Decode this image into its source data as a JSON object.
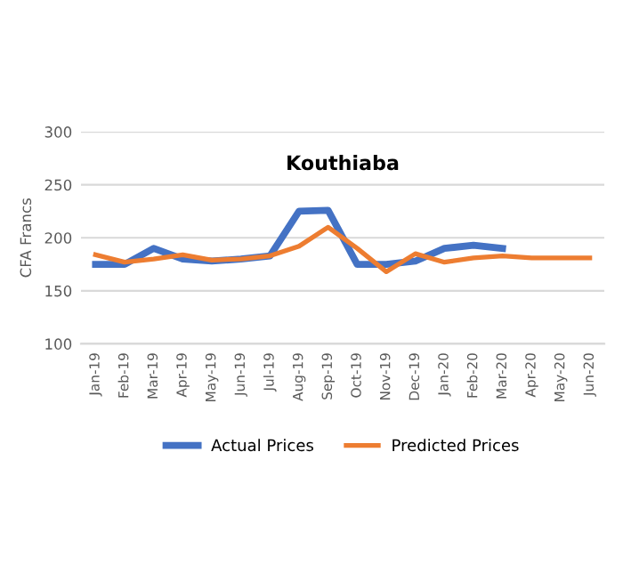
{
  "chart_data": {
    "type": "line",
    "title": "Kouthiaba",
    "ylabel": "CFA Francs",
    "categories": [
      "Jan-19",
      "Feb-19",
      "Mar-19",
      "Apr-19",
      "May-19",
      "Jun-19",
      "Jul-19",
      "Aug-19",
      "Sep-19",
      "Oct-19",
      "Nov-19",
      "Dec-19",
      "Jan-20",
      "Feb-20",
      "Mar-20",
      "Apr-20",
      "May-20",
      "Jun-20"
    ],
    "series": [
      {
        "name": "Actual Prices",
        "color": "#4472c4",
        "values": [
          175,
          175,
          190,
          180,
          178,
          180,
          183,
          225,
          226,
          175,
          175,
          178,
          190,
          193,
          190,
          null,
          null,
          null
        ]
      },
      {
        "name": "Predicted Prices",
        "color": "#ed7d31",
        "values": [
          184,
          177,
          180,
          184,
          179,
          180,
          183,
          192,
          210,
          190,
          168,
          185,
          177,
          181,
          183,
          181,
          181,
          181
        ]
      }
    ],
    "ylim": [
      100,
      300
    ],
    "yticks": [
      100,
      150,
      200,
      250,
      300
    ],
    "grid": "y",
    "legend": "bottom",
    "line_style": "solid"
  }
}
